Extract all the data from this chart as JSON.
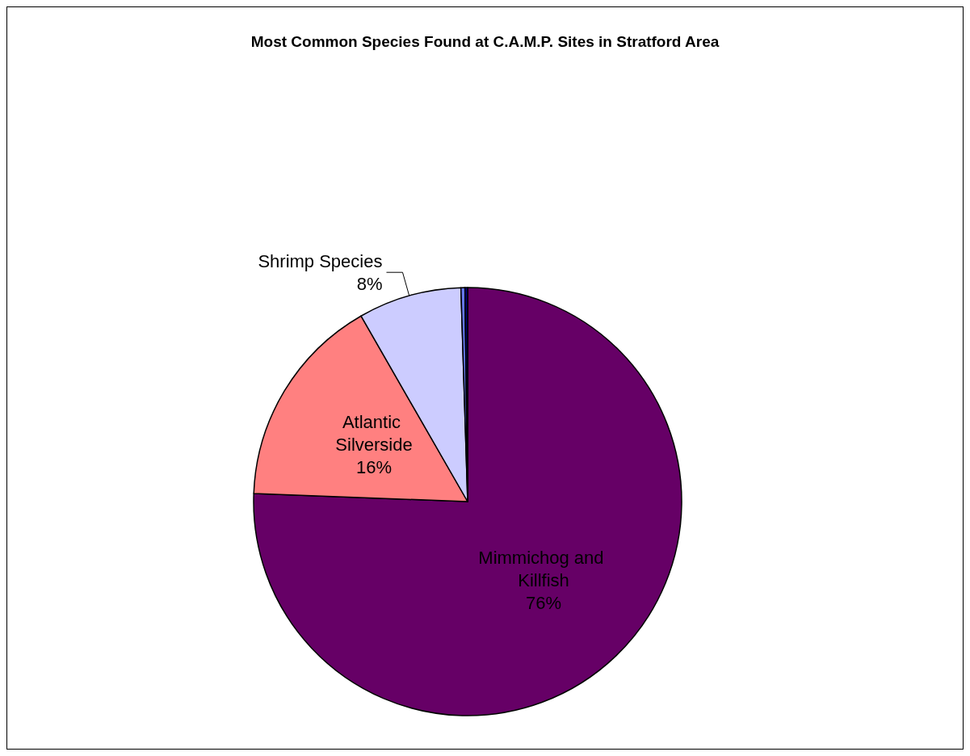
{
  "chart_data": {
    "type": "pie",
    "title": "Most Common Species Found at C.A.M.P. Sites in Stratford Area",
    "categories": [
      "Mimmichog and Killfish",
      "Atlantic Silverside",
      "Shrimp Species",
      null,
      null
    ],
    "values": [
      75.6,
      16.1,
      7.8,
      0.3,
      0.2
    ],
    "value_labels": [
      "76%",
      "16%",
      "8%",
      null,
      null
    ],
    "colors": [
      "#660066",
      "#ff8080",
      "#ccccff",
      "#6677ee",
      "#000080"
    ],
    "legend": false
  }
}
